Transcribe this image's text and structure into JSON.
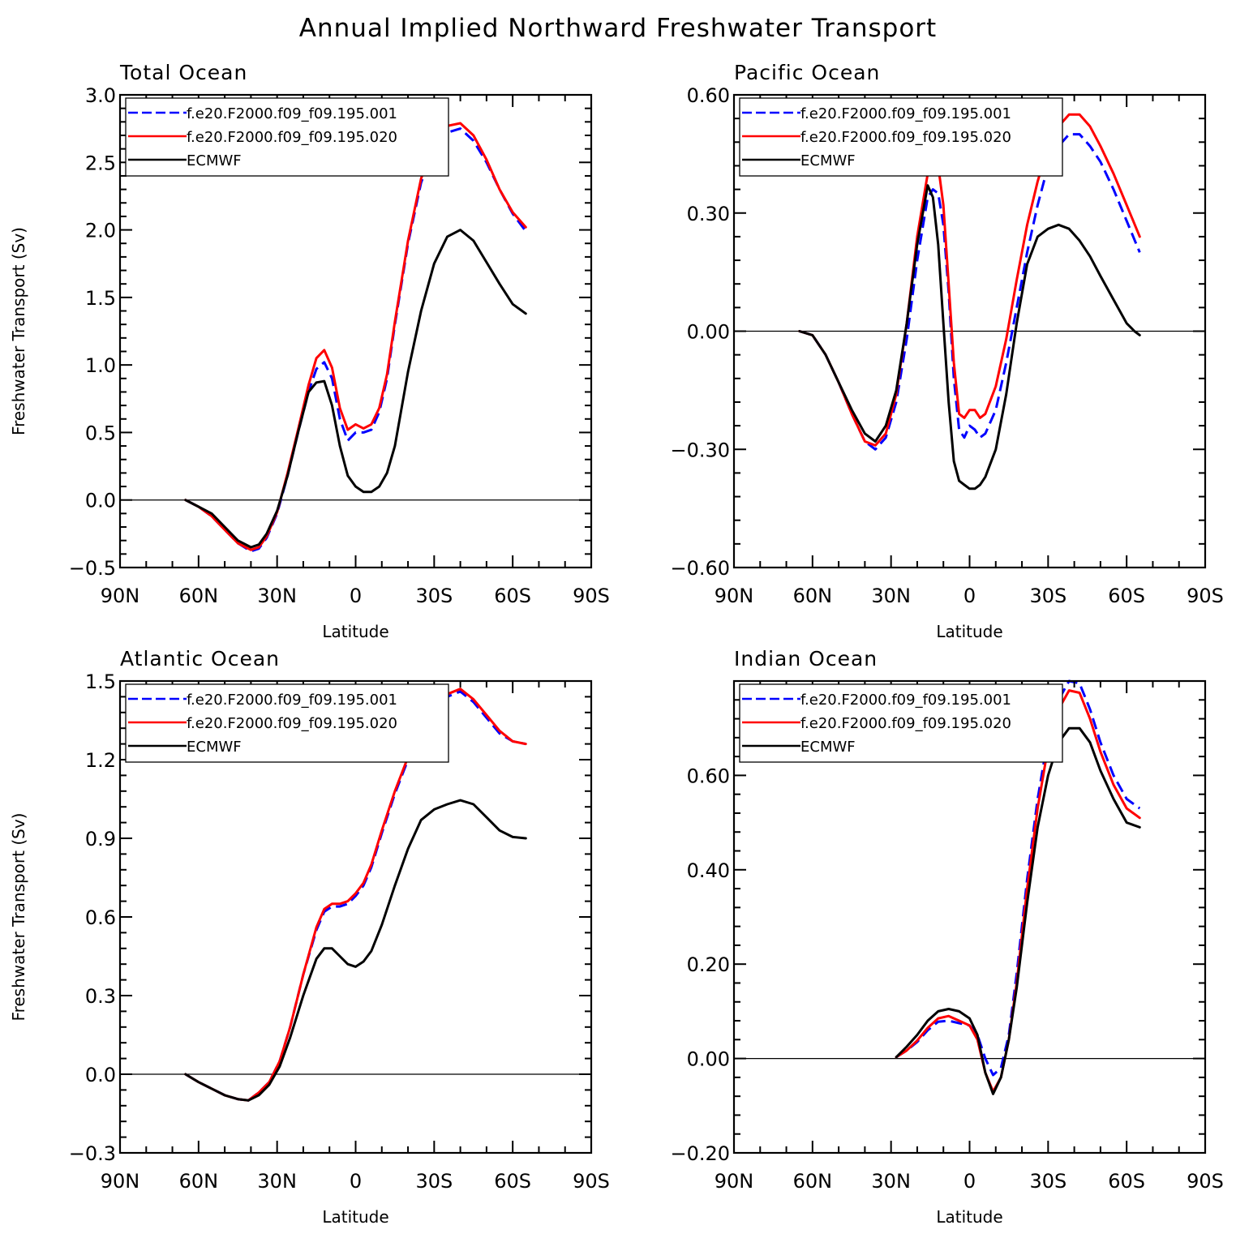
{
  "title": "Annual Implied Northward Freshwater Transport",
  "colors": {
    "series1": "#0000ff",
    "series2": "#ff0000",
    "series3": "#000000"
  },
  "chart_data": [
    {
      "type": "line",
      "title": "Total Ocean",
      "xlabel": "Latitude",
      "ylabel": "Freshwater Transport (Sv)",
      "xlim": [
        90,
        -90
      ],
      "xticks": [
        90,
        60,
        30,
        0,
        -30,
        -60,
        -90
      ],
      "xtick_labels": [
        "90N",
        "60N",
        "30N",
        "0",
        "30S",
        "60S",
        "90S"
      ],
      "ylim": [
        -0.5,
        3.0
      ],
      "yticks": [
        -0.5,
        0.0,
        0.5,
        1.0,
        1.5,
        2.0,
        2.5,
        3.0
      ],
      "ytick_labels": [
        "−0.5",
        "0.0",
        "0.5",
        "1.0",
        "1.5",
        "2.0",
        "2.5",
        "3.0"
      ],
      "legend": "top-left",
      "series": [
        {
          "name": "f.e20.F2000.f09_f09.195.001",
          "style": "dashed",
          "color": "#0000ff",
          "x": [
            65,
            60,
            55,
            50,
            45,
            40,
            37,
            34,
            30,
            26,
            22,
            18,
            15,
            12,
            9,
            6,
            3,
            0,
            -3,
            -6,
            -9,
            -12,
            -15,
            -20,
            -25,
            -30,
            -35,
            -40,
            -45,
            -50,
            -55,
            -60,
            -65
          ],
          "y": [
            0.0,
            -0.05,
            -0.12,
            -0.22,
            -0.32,
            -0.38,
            -0.36,
            -0.28,
            -0.1,
            0.18,
            0.5,
            0.8,
            0.97,
            1.02,
            0.9,
            0.6,
            0.44,
            0.5,
            0.5,
            0.52,
            0.65,
            0.9,
            1.3,
            1.9,
            2.35,
            2.6,
            2.72,
            2.75,
            2.66,
            2.5,
            2.3,
            2.12,
            1.99
          ]
        },
        {
          "name": "f.e20.F2000.f09_f09.195.020",
          "style": "solid",
          "color": "#ff0000",
          "x": [
            65,
            60,
            55,
            50,
            45,
            40,
            37,
            34,
            30,
            26,
            22,
            18,
            15,
            12,
            9,
            6,
            3,
            0,
            -3,
            -6,
            -9,
            -12,
            -15,
            -20,
            -25,
            -30,
            -35,
            -40,
            -45,
            -50,
            -55,
            -60,
            -65
          ],
          "y": [
            0.0,
            -0.05,
            -0.12,
            -0.22,
            -0.32,
            -0.37,
            -0.35,
            -0.27,
            -0.09,
            0.2,
            0.52,
            0.85,
            1.05,
            1.11,
            0.98,
            0.68,
            0.52,
            0.56,
            0.53,
            0.56,
            0.68,
            0.93,
            1.32,
            1.92,
            2.38,
            2.65,
            2.77,
            2.79,
            2.7,
            2.52,
            2.3,
            2.13,
            2.02
          ]
        },
        {
          "name": "ECMWF",
          "style": "solid",
          "color": "#000000",
          "x": [
            65,
            60,
            55,
            50,
            45,
            40,
            37,
            34,
            30,
            26,
            22,
            18,
            15,
            12,
            9,
            6,
            3,
            0,
            -3,
            -6,
            -9,
            -12,
            -15,
            -20,
            -25,
            -30,
            -35,
            -40,
            -45,
            -50,
            -55,
            -60,
            -65
          ],
          "y": [
            0.0,
            -0.05,
            -0.1,
            -0.2,
            -0.3,
            -0.35,
            -0.33,
            -0.25,
            -0.08,
            0.18,
            0.5,
            0.8,
            0.87,
            0.88,
            0.7,
            0.4,
            0.18,
            0.1,
            0.06,
            0.06,
            0.1,
            0.2,
            0.4,
            0.95,
            1.4,
            1.75,
            1.95,
            2.0,
            1.92,
            1.76,
            1.6,
            1.45,
            1.38
          ]
        }
      ]
    },
    {
      "type": "line",
      "title": "Pacific Ocean",
      "xlabel": "Latitude",
      "ylabel": "",
      "xlim": [
        90,
        -90
      ],
      "xticks": [
        90,
        60,
        30,
        0,
        -30,
        -60,
        -90
      ],
      "xtick_labels": [
        "90N",
        "60N",
        "30N",
        "0",
        "30S",
        "60S",
        "90S"
      ],
      "ylim": [
        -0.6,
        0.6
      ],
      "yticks": [
        -0.6,
        -0.3,
        0.0,
        0.3,
        0.6
      ],
      "ytick_labels": [
        "−0.60",
        "−0.30",
        "0.00",
        "0.30",
        "0.60"
      ],
      "legend": "top-left",
      "series": [
        {
          "name": "f.e20.F2000.f09_f09.195.001",
          "style": "dashed",
          "color": "#0000ff",
          "x": [
            65,
            60,
            55,
            50,
            45,
            40,
            36,
            32,
            28,
            24,
            20,
            16,
            14,
            12,
            10,
            8,
            6,
            4,
            2,
            0,
            -2,
            -4,
            -6,
            -10,
            -14,
            -18,
            -22,
            -26,
            -30,
            -34,
            -38,
            -42,
            -46,
            -50,
            -55,
            -60,
            -65
          ],
          "y": [
            0.0,
            -0.01,
            -0.06,
            -0.13,
            -0.21,
            -0.28,
            -0.3,
            -0.27,
            -0.18,
            -0.02,
            0.18,
            0.34,
            0.36,
            0.35,
            0.27,
            0.1,
            -0.12,
            -0.25,
            -0.27,
            -0.24,
            -0.25,
            -0.27,
            -0.26,
            -0.2,
            -0.08,
            0.06,
            0.2,
            0.32,
            0.42,
            0.47,
            0.5,
            0.5,
            0.47,
            0.43,
            0.36,
            0.28,
            0.2
          ]
        },
        {
          "name": "f.e20.F2000.f09_f09.195.020",
          "style": "solid",
          "color": "#ff0000",
          "x": [
            65,
            60,
            55,
            50,
            45,
            40,
            36,
            32,
            28,
            24,
            20,
            16,
            14,
            12,
            10,
            8,
            6,
            4,
            2,
            0,
            -2,
            -4,
            -6,
            -10,
            -14,
            -18,
            -22,
            -26,
            -30,
            -34,
            -38,
            -42,
            -46,
            -50,
            -55,
            -60,
            -65
          ],
          "y": [
            0.0,
            -0.01,
            -0.06,
            -0.13,
            -0.21,
            -0.28,
            -0.29,
            -0.26,
            -0.16,
            0.02,
            0.24,
            0.4,
            0.44,
            0.42,
            0.32,
            0.12,
            -0.08,
            -0.21,
            -0.22,
            -0.2,
            -0.2,
            -0.22,
            -0.21,
            -0.14,
            -0.02,
            0.13,
            0.27,
            0.38,
            0.47,
            0.52,
            0.55,
            0.55,
            0.52,
            0.47,
            0.4,
            0.32,
            0.24
          ]
        },
        {
          "name": "ECMWF",
          "style": "solid",
          "color": "#000000",
          "x": [
            65,
            60,
            55,
            50,
            45,
            40,
            36,
            32,
            28,
            24,
            20,
            16,
            14,
            12,
            10,
            8,
            6,
            4,
            2,
            0,
            -2,
            -4,
            -6,
            -10,
            -14,
            -18,
            -22,
            -26,
            -30,
            -34,
            -38,
            -42,
            -46,
            -50,
            -55,
            -60,
            -63,
            -65
          ],
          "y": [
            0.0,
            -0.01,
            -0.06,
            -0.13,
            -0.2,
            -0.26,
            -0.28,
            -0.24,
            -0.15,
            0.02,
            0.22,
            0.37,
            0.34,
            0.22,
            0.02,
            -0.18,
            -0.33,
            -0.38,
            -0.39,
            -0.4,
            -0.4,
            -0.39,
            -0.37,
            -0.3,
            -0.16,
            0.02,
            0.17,
            0.24,
            0.26,
            0.27,
            0.26,
            0.23,
            0.19,
            0.14,
            0.08,
            0.02,
            0.0,
            -0.01
          ]
        }
      ]
    },
    {
      "type": "line",
      "title": "Atlantic Ocean",
      "xlabel": "Latitude",
      "ylabel": "Freshwater Transport (Sv)",
      "xlim": [
        90,
        -90
      ],
      "xticks": [
        90,
        60,
        30,
        0,
        -30,
        -60,
        -90
      ],
      "xtick_labels": [
        "90N",
        "60N",
        "30N",
        "0",
        "30S",
        "60S",
        "90S"
      ],
      "ylim": [
        -0.3,
        1.5
      ],
      "yticks": [
        -0.3,
        0.0,
        0.3,
        0.6,
        0.9,
        1.2,
        1.5
      ],
      "ytick_labels": [
        "−0.3",
        "0.0",
        "0.3",
        "0.6",
        "0.9",
        "1.2",
        "1.5"
      ],
      "legend": "top-left",
      "series": [
        {
          "name": "f.e20.F2000.f09_f09.195.001",
          "style": "dashed",
          "color": "#0000ff",
          "x": [
            65,
            60,
            55,
            50,
            45,
            41,
            37,
            33,
            29,
            25,
            20,
            15,
            12,
            9,
            6,
            3,
            0,
            -3,
            -6,
            -10,
            -15,
            -20,
            -25,
            -30,
            -35,
            -40,
            -45,
            -50,
            -55,
            -60,
            -65
          ],
          "y": [
            0.0,
            -0.03,
            -0.055,
            -0.08,
            -0.095,
            -0.1,
            -0.07,
            -0.03,
            0.05,
            0.18,
            0.38,
            0.55,
            0.62,
            0.64,
            0.64,
            0.65,
            0.68,
            0.72,
            0.79,
            0.92,
            1.07,
            1.2,
            1.31,
            1.39,
            1.44,
            1.46,
            1.42,
            1.36,
            1.3,
            1.27,
            1.26
          ]
        },
        {
          "name": "f.e20.F2000.f09_f09.195.020",
          "style": "solid",
          "color": "#ff0000",
          "x": [
            65,
            60,
            55,
            50,
            45,
            41,
            37,
            33,
            29,
            25,
            20,
            15,
            12,
            9,
            6,
            3,
            0,
            -3,
            -6,
            -10,
            -15,
            -20,
            -25,
            -30,
            -35,
            -40,
            -45,
            -50,
            -55,
            -60,
            -65
          ],
          "y": [
            0.0,
            -0.03,
            -0.055,
            -0.08,
            -0.095,
            -0.1,
            -0.07,
            -0.03,
            0.05,
            0.18,
            0.38,
            0.56,
            0.63,
            0.65,
            0.65,
            0.66,
            0.69,
            0.73,
            0.8,
            0.93,
            1.08,
            1.21,
            1.32,
            1.4,
            1.45,
            1.47,
            1.43,
            1.37,
            1.31,
            1.27,
            1.26
          ]
        },
        {
          "name": "ECMWF",
          "style": "solid",
          "color": "#000000",
          "x": [
            65,
            60,
            55,
            50,
            45,
            41,
            37,
            33,
            29,
            25,
            20,
            15,
            12,
            9,
            6,
            3,
            0,
            -3,
            -6,
            -10,
            -15,
            -20,
            -25,
            -30,
            -35,
            -40,
            -45,
            -50,
            -55,
            -60,
            -65
          ],
          "y": [
            0.0,
            -0.03,
            -0.055,
            -0.08,
            -0.095,
            -0.1,
            -0.08,
            -0.04,
            0.03,
            0.14,
            0.3,
            0.44,
            0.48,
            0.48,
            0.45,
            0.42,
            0.41,
            0.43,
            0.47,
            0.57,
            0.72,
            0.86,
            0.97,
            1.01,
            1.03,
            1.045,
            1.03,
            0.98,
            0.93,
            0.905,
            0.9
          ]
        }
      ]
    },
    {
      "type": "line",
      "title": "Indian Ocean",
      "xlabel": "Latitude",
      "ylabel": "",
      "xlim": [
        90,
        -90
      ],
      "xticks": [
        90,
        60,
        30,
        0,
        -30,
        -60,
        -90
      ],
      "xtick_labels": [
        "90N",
        "60N",
        "30N",
        "0",
        "30S",
        "60S",
        "90S"
      ],
      "ylim": [
        -0.2,
        0.8
      ],
      "yticks": [
        -0.2,
        0.0,
        0.2,
        0.4,
        0.6
      ],
      "ytick_labels": [
        "−0.20",
        "0.00",
        "0.20",
        "0.40",
        "0.60"
      ],
      "legend": "top-left",
      "series": [
        {
          "name": "f.e20.F2000.f09_f09.195.001",
          "style": "dashed",
          "color": "#0000ff",
          "x": [
            28,
            24,
            20,
            16,
            12,
            8,
            4,
            0,
            -3,
            -6,
            -9,
            -12,
            -15,
            -18,
            -22,
            -26,
            -30,
            -34,
            -38,
            -42,
            -46,
            -50,
            -55,
            -60,
            -65
          ],
          "y": [
            0.003,
            0.017,
            0.035,
            0.06,
            0.078,
            0.08,
            0.075,
            0.07,
            0.05,
            0.0,
            -0.035,
            -0.02,
            0.05,
            0.18,
            0.38,
            0.55,
            0.68,
            0.76,
            0.8,
            0.795,
            0.74,
            0.67,
            0.6,
            0.55,
            0.53
          ]
        },
        {
          "name": "f.e20.F2000.f09_f09.195.020",
          "style": "solid",
          "color": "#ff0000",
          "x": [
            28,
            24,
            20,
            16,
            12,
            8,
            4,
            0,
            -3,
            -6,
            -9,
            -12,
            -15,
            -18,
            -22,
            -26,
            -30,
            -34,
            -38,
            -42,
            -46,
            -50,
            -55,
            -60,
            -65
          ],
          "y": [
            0.003,
            0.017,
            0.038,
            0.065,
            0.085,
            0.09,
            0.08,
            0.07,
            0.04,
            -0.03,
            -0.07,
            -0.04,
            0.04,
            0.16,
            0.36,
            0.53,
            0.66,
            0.74,
            0.78,
            0.775,
            0.72,
            0.65,
            0.58,
            0.53,
            0.51
          ]
        },
        {
          "name": "ECMWF",
          "style": "solid",
          "color": "#000000",
          "x": [
            28,
            24,
            20,
            16,
            12,
            8,
            4,
            0,
            -3,
            -6,
            -9,
            -12,
            -15,
            -18,
            -22,
            -26,
            -30,
            -34,
            -38,
            -42,
            -46,
            -50,
            -55,
            -60,
            -65
          ],
          "y": [
            0.003,
            0.025,
            0.05,
            0.08,
            0.1,
            0.105,
            0.1,
            0.085,
            0.05,
            -0.03,
            -0.075,
            -0.04,
            0.04,
            0.15,
            0.33,
            0.49,
            0.6,
            0.67,
            0.7,
            0.7,
            0.67,
            0.61,
            0.55,
            0.5,
            0.49
          ]
        }
      ]
    }
  ]
}
